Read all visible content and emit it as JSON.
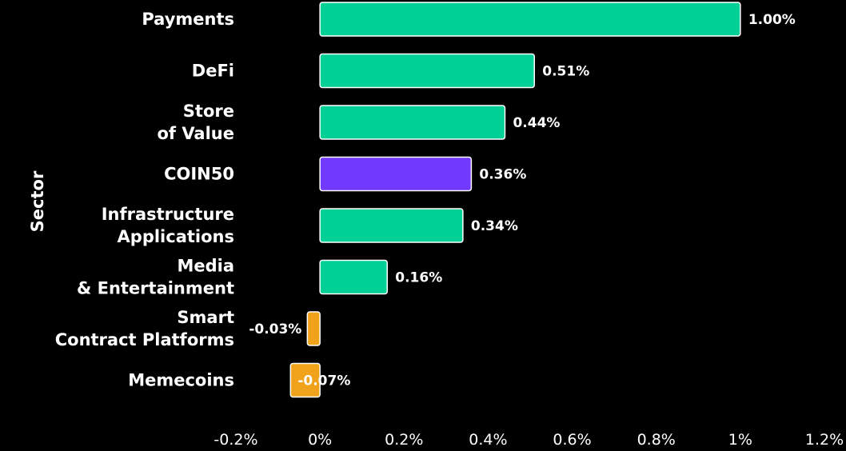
{
  "chart_data": {
    "type": "bar",
    "orientation": "horizontal",
    "ylabel": "Sector",
    "xlim": [
      -0.2,
      1.2
    ],
    "xticks": [
      -0.2,
      0,
      0.2,
      0.4,
      0.6,
      0.8,
      1,
      1.2
    ],
    "xtick_labels": [
      "-0.2%",
      "0%",
      "0.2%",
      "0.4%",
      "0.6%",
      "0.8%",
      "1%",
      "1.2%"
    ],
    "categories": [
      [
        "Payments"
      ],
      [
        "DeFi"
      ],
      [
        "Store",
        "of Value"
      ],
      [
        "COIN50"
      ],
      [
        "Infrastructure",
        "Applications"
      ],
      [
        "Media",
        "& Entertainment"
      ],
      [
        "Smart",
        "Contract Platforms"
      ],
      [
        "Memecoins"
      ]
    ],
    "values": [
      1.0,
      0.51,
      0.44,
      0.36,
      0.34,
      0.16,
      -0.03,
      -0.07
    ],
    "value_labels": [
      "1.00%",
      "0.51%",
      "0.44%",
      "0.36%",
      "0.34%",
      "0.16%",
      "-0.03%",
      "-0.07%"
    ],
    "colors": {
      "positive": "#00d096",
      "highlight": "#7239ff",
      "negative": "#f0a21a",
      "background": "#000000",
      "text": "#ffffff"
    },
    "highlight_category": "COIN50",
    "grid": false,
    "legend": "none"
  }
}
